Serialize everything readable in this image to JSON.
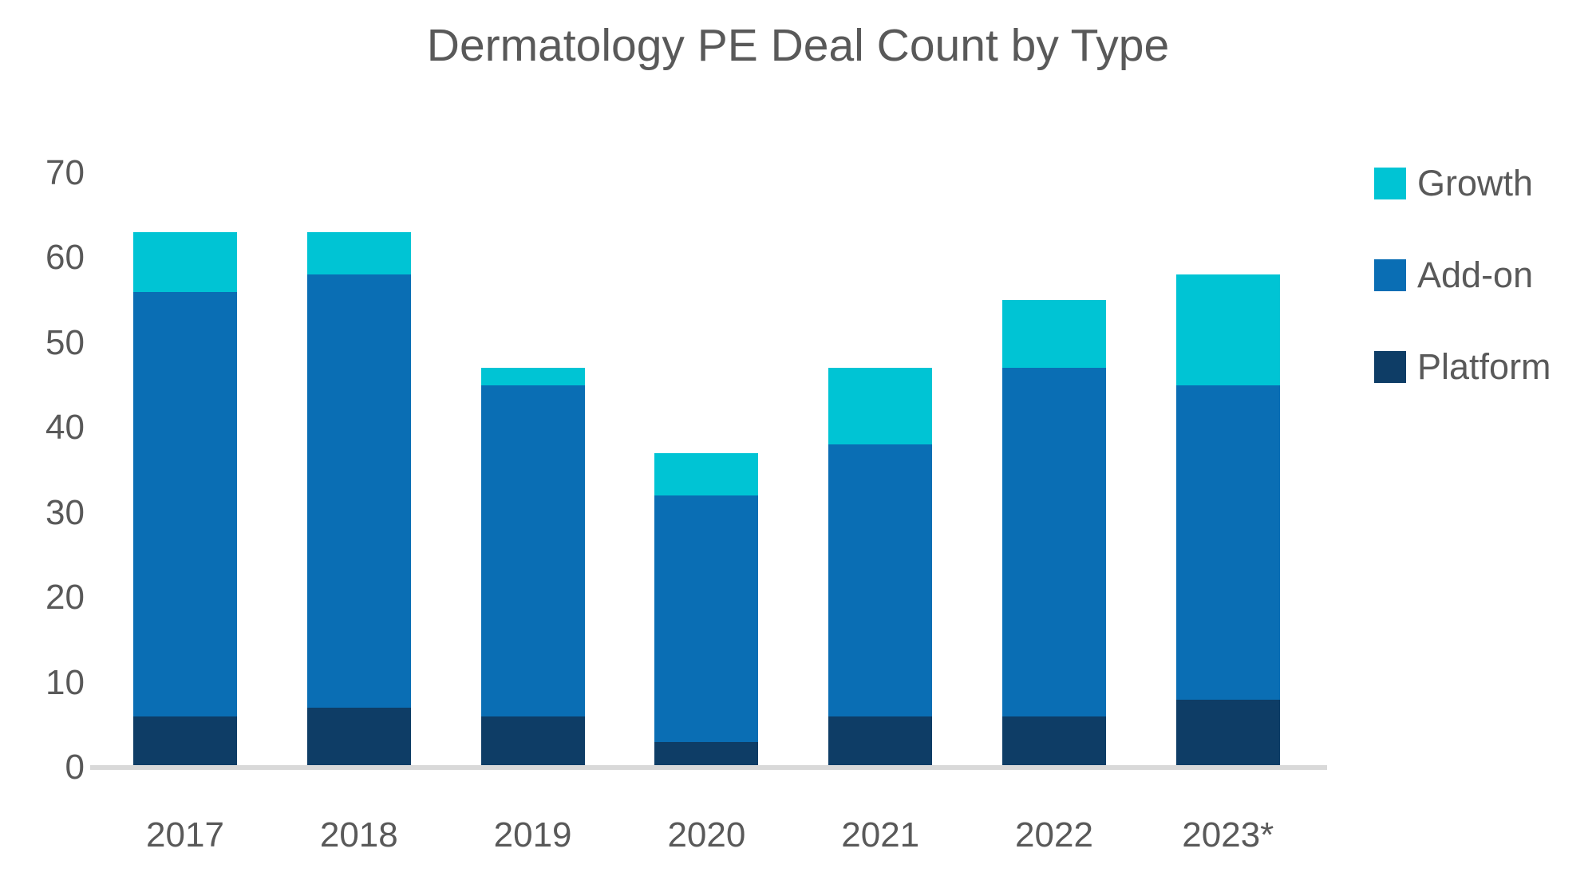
{
  "chart_data": {
    "type": "bar",
    "stacked": true,
    "title": "Dermatology PE Deal Count by Type",
    "categories": [
      "2017",
      "2018",
      "2019",
      "2020",
      "2021",
      "2022",
      "2023*"
    ],
    "series": [
      {
        "name": "Platform",
        "color": "#0E3D66",
        "values": [
          6,
          7,
          6,
          3,
          6,
          6,
          8
        ]
      },
      {
        "name": "Add-on",
        "color": "#0A6EB4",
        "values": [
          50,
          51,
          39,
          29,
          32,
          41,
          37
        ]
      },
      {
        "name": "Growth",
        "color": "#00C4D4",
        "values": [
          7,
          5,
          2,
          5,
          9,
          8,
          13
        ]
      }
    ],
    "totals": [
      63,
      63,
      47,
      37,
      47,
      55,
      58
    ],
    "xlabel": "",
    "ylabel": "",
    "ylim": [
      0,
      70
    ],
    "yticks": [
      0,
      10,
      20,
      30,
      40,
      50,
      60,
      70
    ],
    "grid": false,
    "legend": {
      "position": "right",
      "items": [
        "Growth",
        "Add-on",
        "Platform"
      ]
    },
    "axis_line_color": "#D9D9D9",
    "text_color": "#595959",
    "background_color": "#FFFFFF"
  }
}
